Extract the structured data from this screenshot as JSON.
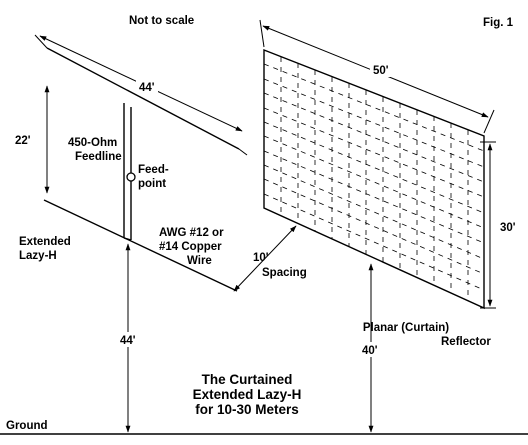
{
  "figure": {
    "fig_label": "Fig. 1",
    "not_to_scale": "Not to scale",
    "title_lines": [
      "The Curtained",
      "Extended Lazy-H",
      "for 10-30 Meters"
    ]
  },
  "antenna": {
    "name_lines": [
      "Extended",
      "Lazy-H"
    ],
    "length": "44'",
    "vertical_spacing": "22'",
    "feedline_lines": [
      "450-Ohm",
      "Feedline"
    ],
    "feedpoint_lines": [
      "Feed-",
      "point"
    ],
    "wire_lines": [
      "AWG #12 or",
      "#14 Copper",
      "Wire"
    ],
    "height": "44'"
  },
  "reflector": {
    "name_lines": [
      "Planar (Curtain)",
      "Reflector"
    ],
    "width": "50'",
    "depth": "30'",
    "height": "40'"
  },
  "spacing": {
    "value": "10'",
    "label": "Spacing"
  },
  "ground": {
    "label": "Ground"
  }
}
